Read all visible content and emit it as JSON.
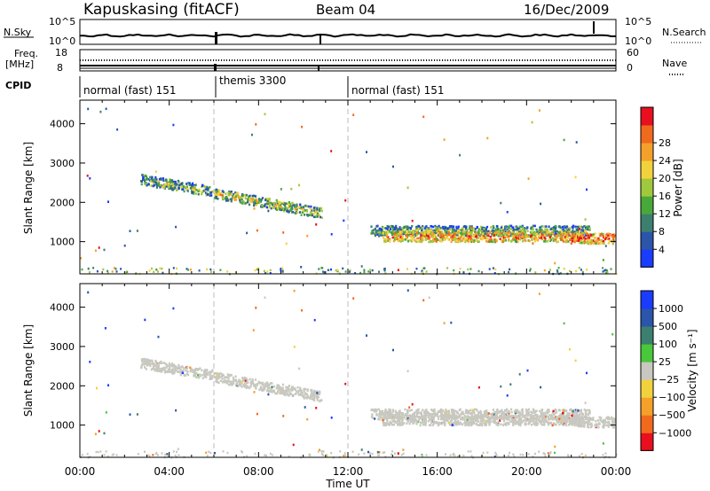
{
  "header": {
    "station": "Kapuskasing (fitACF)",
    "beam": "Beam 04",
    "date": "16/Dec/2009"
  },
  "panels": {
    "nsky": {
      "label": "N.Sky",
      "right_label": "N.Search",
      "ticks_left": [
        "10^5",
        "10^0"
      ],
      "ticks_right": [
        "10^5",
        "10^0"
      ]
    },
    "freq": {
      "label": "Freq.",
      "unit": "[MHz]",
      "right_label": "Nave",
      "ticks_left": [
        "18",
        "8"
      ],
      "ticks_right": [
        "60",
        "0"
      ]
    },
    "cpid": {
      "label": "CPID",
      "segments": [
        {
          "label": "normal (fast) 151",
          "start": 0,
          "end": 6
        },
        {
          "label": "themis 3300",
          "start": 6,
          "end": 12
        },
        {
          "label": "normal (fast) 151",
          "start": 12,
          "end": 24
        }
      ]
    }
  },
  "chart_data": [
    {
      "type": "heatmap",
      "name": "power",
      "xlabel": "",
      "ylabel": "Slant Range [km]",
      "xlim": [
        0,
        24
      ],
      "ylim": [
        180,
        4600
      ],
      "yticks": [
        1000,
        2000,
        3000,
        4000
      ],
      "colorbar": {
        "label": "Power [dB]",
        "ticks": [
          "4",
          "8",
          "12",
          "16",
          "20",
          "24",
          "28"
        ],
        "colors": [
          "#1a3cff",
          "#2b55aa",
          "#3d7f6e",
          "#48a83a",
          "#a0c83c",
          "#f2d23c",
          "#f5a02a",
          "#f06a1e",
          "#e8101e"
        ]
      },
      "echo_bands": [
        {
          "t0": 2.7,
          "t1": 5.9,
          "r0": 2600,
          "r1": 2300,
          "intensity": 0.45
        },
        {
          "t0": 6.0,
          "t1": 10.8,
          "r0": 2250,
          "r1": 1750,
          "intensity": 0.55
        },
        {
          "t0": 13.0,
          "t1": 22.8,
          "r0": 1300,
          "r1": 1300,
          "intensity": 0.4
        },
        {
          "t0": 13.5,
          "t1": 22.3,
          "r0": 1150,
          "r1": 1150,
          "intensity": 0.8
        },
        {
          "t0": 21.9,
          "t1": 23.9,
          "r0": 1100,
          "r1": 1100,
          "intensity": 0.9
        }
      ]
    },
    {
      "type": "heatmap",
      "name": "velocity",
      "xlabel": "Time UT",
      "ylabel": "Slant Range [km]",
      "xlim": [
        0,
        24
      ],
      "ylim": [
        180,
        4600
      ],
      "yticks": [
        1000,
        2000,
        3000,
        4000
      ],
      "xticks": [
        "00:00",
        "04:00",
        "08:00",
        "12:00",
        "16:00",
        "20:00",
        "00:00"
      ],
      "colorbar": {
        "label": "Velocity [m s⁻¹]",
        "ticks": [
          "1000",
          "500",
          "100",
          "25",
          "−25",
          "−100",
          "−500",
          "−1000"
        ],
        "colors": [
          "#1a3cff",
          "#2b55aa",
          "#3d7f6e",
          "#48c83a",
          "#c8c8c0",
          "#f2d23c",
          "#f5a02a",
          "#f06a1e",
          "#e8101e"
        ]
      },
      "ground_scatter_color": "#c8c8c0"
    }
  ]
}
